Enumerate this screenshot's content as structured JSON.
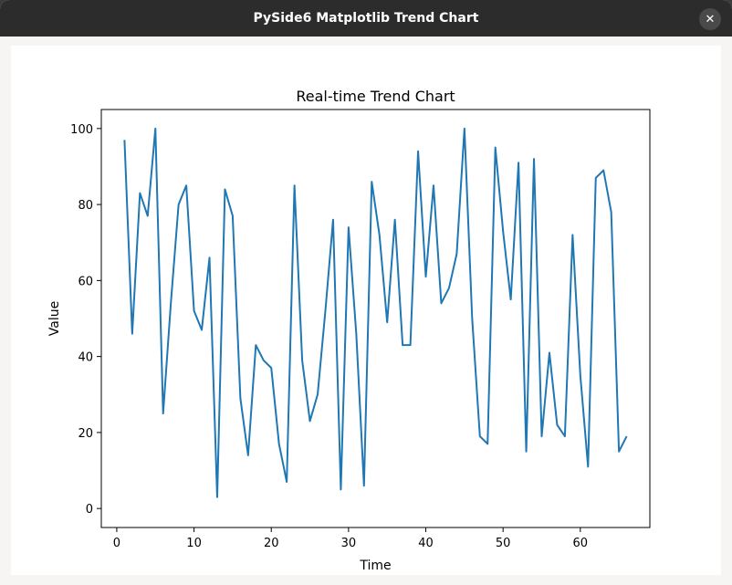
{
  "window": {
    "title": "PySide6 Matplotlib Trend Chart",
    "close_glyph": "✕"
  },
  "colors": {
    "titlebar": "#2c2c2c",
    "line": "#1f77b4"
  },
  "chart_data": {
    "type": "line",
    "title": "Real-time Trend Chart",
    "xlabel": "Time",
    "ylabel": "Value",
    "xlim": [
      -2,
      69
    ],
    "ylim": [
      -5,
      105
    ],
    "xticks": [
      0,
      10,
      20,
      30,
      40,
      50,
      60
    ],
    "yticks": [
      0,
      20,
      40,
      60,
      80,
      100
    ],
    "grid": false,
    "x": [
      1,
      2,
      3,
      4,
      5,
      6,
      7,
      8,
      9,
      10,
      11,
      12,
      13,
      14,
      15,
      16,
      17,
      18,
      19,
      20,
      21,
      22,
      23,
      24,
      25,
      26,
      27,
      28,
      29,
      30,
      31,
      32,
      33,
      34,
      35,
      36,
      37,
      38,
      39,
      40,
      41,
      42,
      43,
      44,
      45,
      46,
      47,
      48,
      49,
      50,
      51,
      52,
      53,
      54,
      55,
      56,
      57,
      58,
      59,
      60,
      61,
      62,
      63,
      64,
      65,
      66
    ],
    "series": [
      {
        "values": [
          97,
          46,
          83,
          77,
          100,
          25,
          54,
          80,
          85,
          52,
          47,
          66,
          3,
          84,
          77,
          29,
          14,
          43,
          39,
          37,
          17,
          7,
          85,
          39,
          23,
          30,
          52,
          76,
          5,
          74,
          46,
          6,
          86,
          72,
          49,
          76,
          43,
          43,
          94,
          61,
          85,
          54,
          58,
          67,
          100,
          50,
          19,
          17,
          95,
          73,
          55,
          91,
          15,
          92,
          19,
          41,
          22,
          19,
          72,
          35,
          11,
          87,
          89,
          78,
          15,
          19
        ]
      }
    ]
  }
}
